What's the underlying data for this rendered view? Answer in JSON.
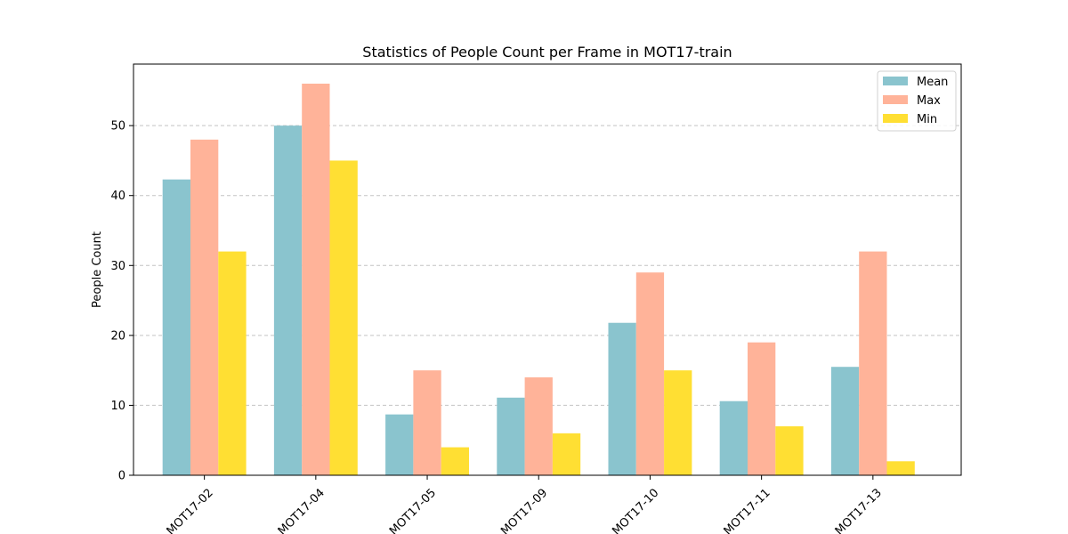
{
  "chart_data": {
    "type": "bar",
    "title": "Statistics of People Count per Frame in MOT17-train",
    "xlabel": "",
    "ylabel": "People Count",
    "categories": [
      "MOT17-02",
      "MOT17-04",
      "MOT17-05",
      "MOT17-09",
      "MOT17-10",
      "MOT17-11",
      "MOT17-13"
    ],
    "series": [
      {
        "name": "Mean",
        "color": "#8ac4ce",
        "values": [
          42.3,
          50.0,
          8.7,
          11.1,
          21.8,
          10.6,
          15.5
        ]
      },
      {
        "name": "Max",
        "color": "#ffb399",
        "values": [
          48,
          56,
          15,
          14,
          29,
          19,
          32
        ]
      },
      {
        "name": "Min",
        "color": "#ffdf33",
        "values": [
          32,
          45,
          4,
          6,
          15,
          7,
          2
        ]
      }
    ],
    "ylim": [
      0,
      58.8
    ],
    "yticks": [
      0,
      10,
      20,
      30,
      40,
      50
    ],
    "grid": "y-dashed",
    "legend": "top-right"
  }
}
